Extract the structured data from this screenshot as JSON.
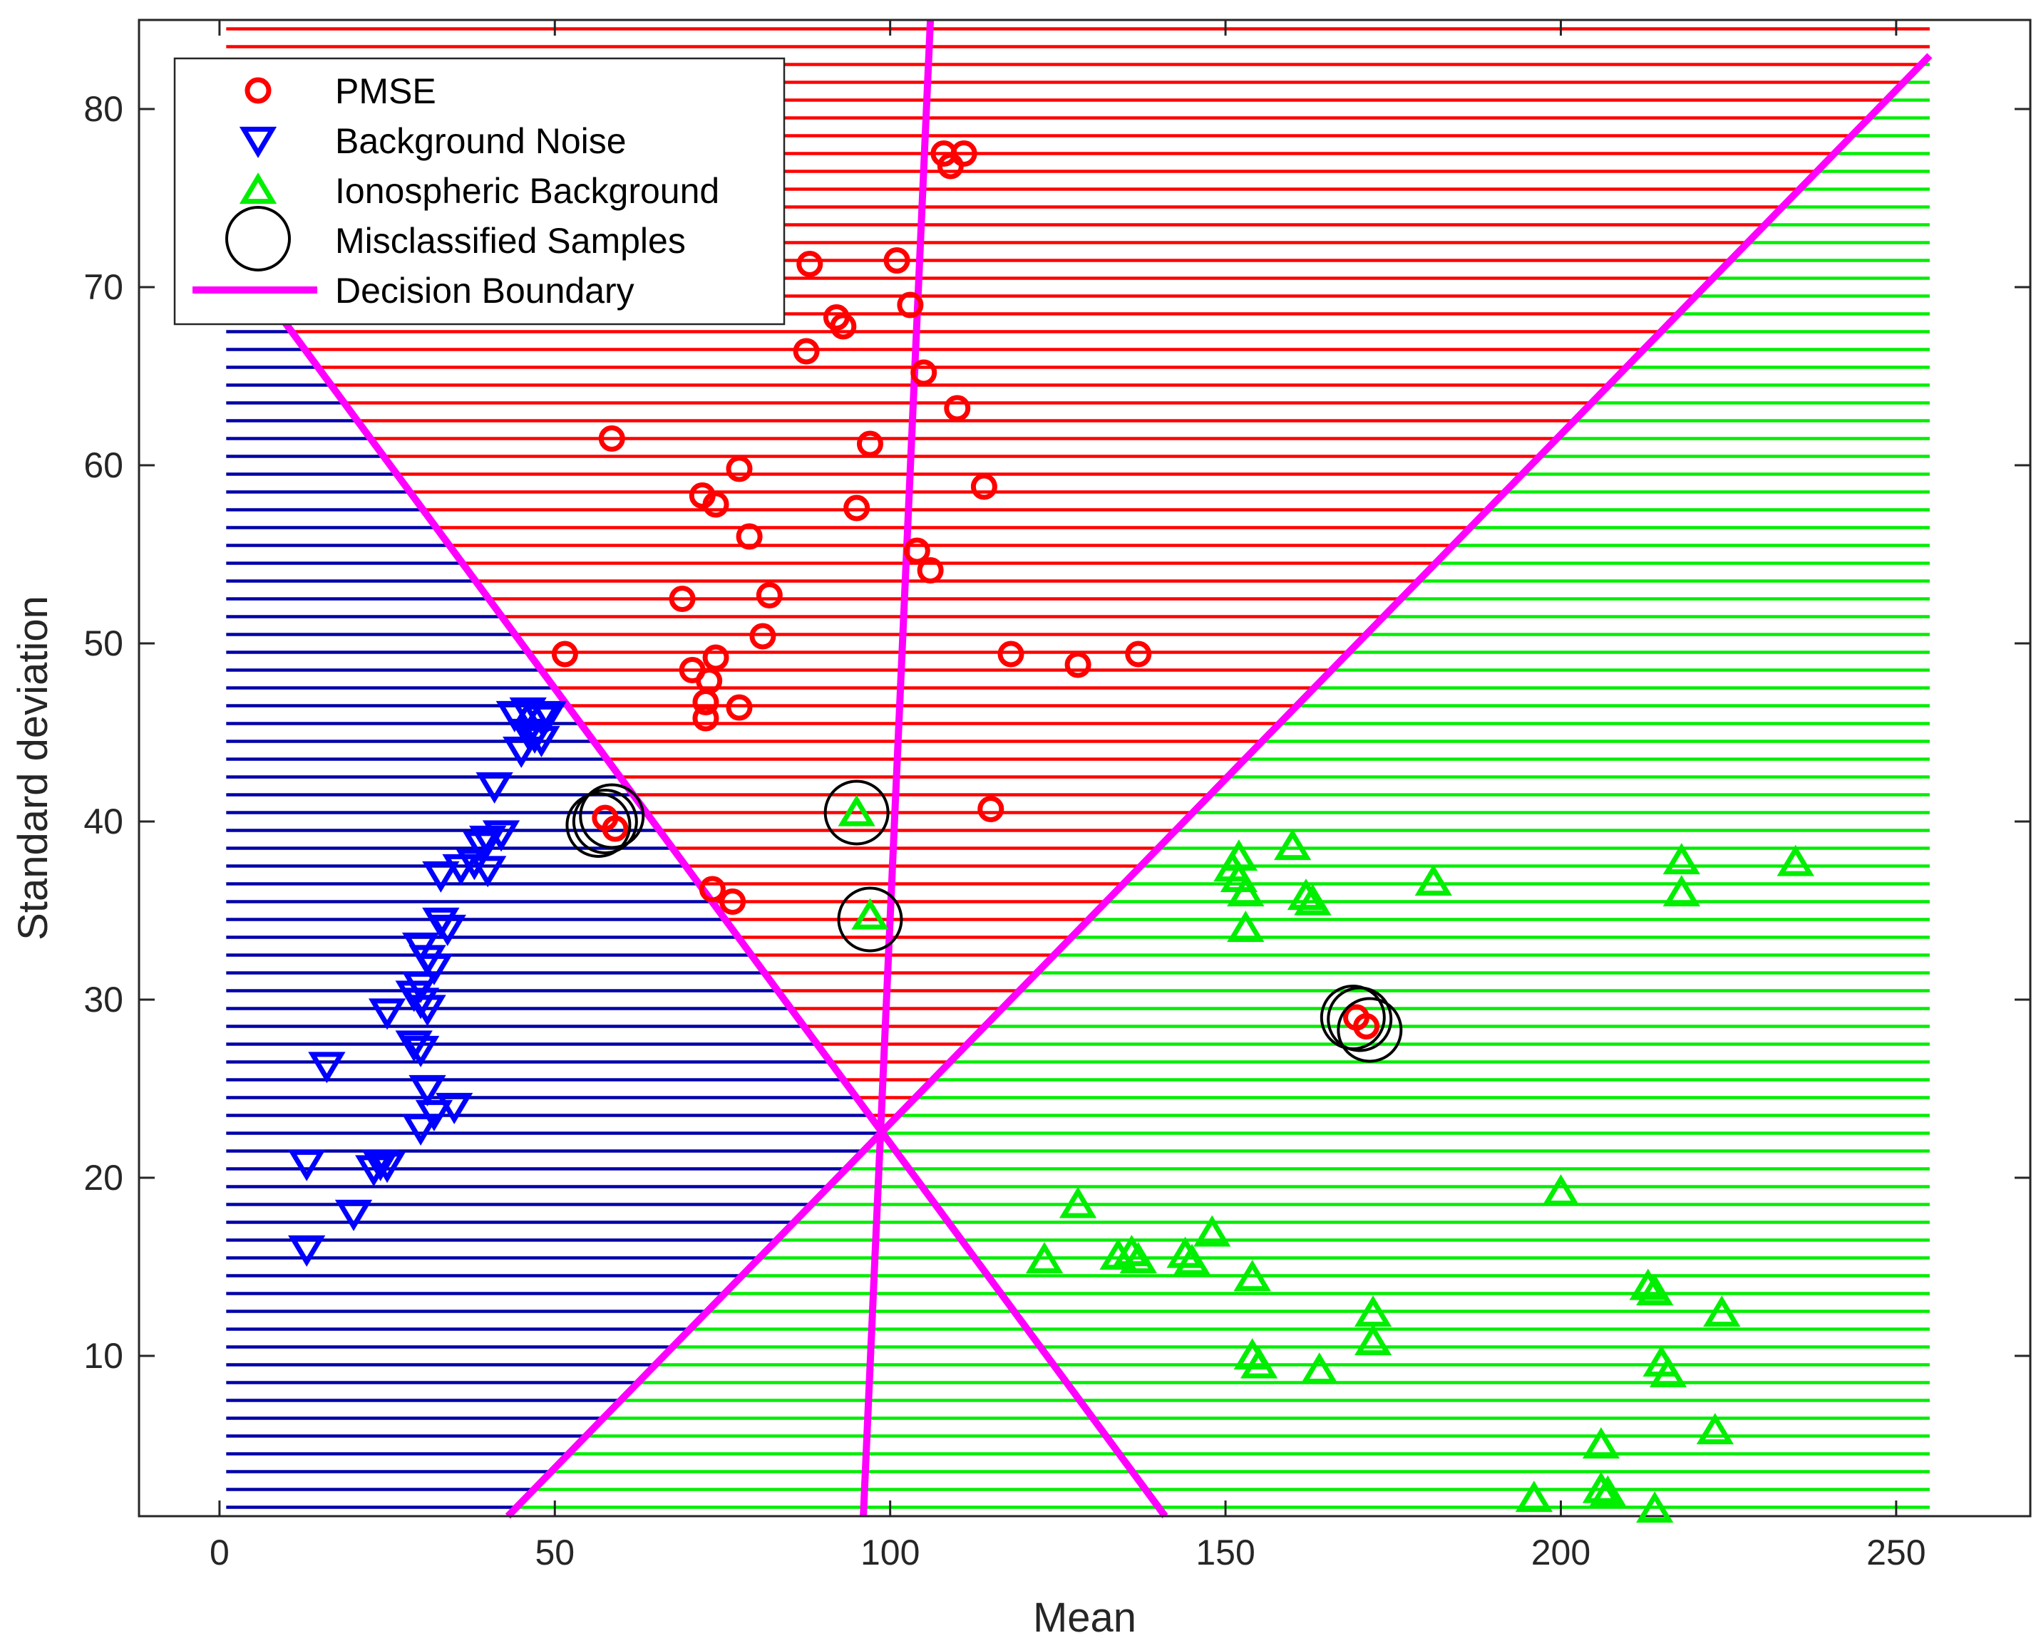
{
  "chart_data": {
    "type": "scatter",
    "title": "",
    "xlabel": "Mean",
    "ylabel": "Standard deviation",
    "xlim": [
      -12,
      270
    ],
    "ylim": [
      1,
      85
    ],
    "xticks": [
      0,
      50,
      100,
      150,
      200,
      250
    ],
    "yticks": [
      10,
      20,
      30,
      40,
      50,
      60,
      70,
      80
    ],
    "region_extent": {
      "x": [
        1,
        255
      ],
      "y": [
        1,
        85
      ],
      "stripe_spacing": 1
    },
    "regions": [
      {
        "name": "PMSE region",
        "color": "#ff0000"
      },
      {
        "name": "Background Noise region",
        "color": "#0000a8"
      },
      {
        "name": "Ionospheric Background region",
        "color": "#00ee00"
      }
    ],
    "boundary_point": [
      99,
      23
    ],
    "boundary_lines": [
      {
        "x": [
          106,
          96
        ],
        "y": [
          85,
          1
        ]
      },
      {
        "x": [
          0,
          141
        ],
        "y": [
          73,
          1
        ]
      },
      {
        "x": [
          43,
          255
        ],
        "y": [
          1,
          83
        ]
      }
    ],
    "legend": {
      "position": "top-left",
      "entries": [
        {
          "label": "PMSE",
          "marker": "circle",
          "color": "#ff0000"
        },
        {
          "label": "Background Noise",
          "marker": "triangle-down",
          "color": "#0000ff"
        },
        {
          "label": "Ionospheric Background",
          "marker": "triangle-up",
          "color": "#00ee00"
        },
        {
          "label": "Misclassified Samples",
          "marker": "big-circle",
          "color": "#000000"
        },
        {
          "label": "Decision Boundary",
          "marker": "line",
          "color": "#ff00ff"
        }
      ]
    },
    "series": [
      {
        "name": "PMSE",
        "marker": "circle",
        "color": "#ff0000",
        "points": [
          [
            108,
            77.5
          ],
          [
            111,
            77.5
          ],
          [
            109,
            76.8
          ],
          [
            88,
            71.3
          ],
          [
            101,
            71.5
          ],
          [
            92,
            68.3
          ],
          [
            93,
            67.8
          ],
          [
            103,
            69
          ],
          [
            87.5,
            66.4
          ],
          [
            105,
            65.2
          ],
          [
            110,
            63.2
          ],
          [
            58.5,
            61.5
          ],
          [
            97,
            61.2
          ],
          [
            77.5,
            59.8
          ],
          [
            114,
            58.8
          ],
          [
            72,
            58.3
          ],
          [
            74,
            57.8
          ],
          [
            95,
            57.6
          ],
          [
            79,
            56
          ],
          [
            104,
            55.2
          ],
          [
            106,
            54.1
          ],
          [
            69,
            52.5
          ],
          [
            82,
            52.7
          ],
          [
            81,
            50.4
          ],
          [
            51.5,
            49.4
          ],
          [
            118,
            49.4
          ],
          [
            137,
            49.4
          ],
          [
            128,
            48.8
          ],
          [
            74,
            49.2
          ],
          [
            70.5,
            48.5
          ],
          [
            73,
            47.9
          ],
          [
            72.5,
            46.7
          ],
          [
            77.5,
            46.4
          ],
          [
            72.5,
            45.8
          ],
          [
            115,
            40.7
          ],
          [
            73.5,
            36.2
          ],
          [
            76.5,
            35.5
          ],
          [
            57.5,
            40.2
          ],
          [
            59,
            39.6
          ],
          [
            169.5,
            29
          ],
          [
            171,
            28.5
          ]
        ]
      },
      {
        "name": "Background Noise",
        "marker": "triangle-down",
        "color": "#0000ff",
        "points": [
          [
            44,
            46
          ],
          [
            46,
            46.2
          ],
          [
            48,
            45.8
          ],
          [
            49,
            46
          ],
          [
            46,
            45
          ],
          [
            47,
            44.8
          ],
          [
            48,
            44.6
          ],
          [
            45,
            44
          ],
          [
            41,
            42
          ],
          [
            42,
            39.3
          ],
          [
            40,
            39
          ],
          [
            39,
            38.7
          ],
          [
            38,
            37.7
          ],
          [
            36,
            37.4
          ],
          [
            40,
            37.3
          ],
          [
            33,
            37
          ],
          [
            33,
            34.4
          ],
          [
            34,
            34
          ],
          [
            30,
            33
          ],
          [
            31,
            32.3
          ],
          [
            32,
            31.8
          ],
          [
            30,
            30.8
          ],
          [
            29,
            30.3
          ],
          [
            30,
            29.9
          ],
          [
            31,
            29.5
          ],
          [
            25,
            29.3
          ],
          [
            29,
            27.5
          ],
          [
            30,
            27.2
          ],
          [
            31,
            25
          ],
          [
            35,
            24
          ],
          [
            32,
            23.6
          ],
          [
            30,
            22.8
          ],
          [
            16,
            26.3
          ],
          [
            24,
            20.8
          ],
          [
            25,
            20.7
          ],
          [
            23,
            20.5
          ],
          [
            13,
            20.8
          ],
          [
            20,
            18
          ],
          [
            13,
            16
          ]
        ]
      },
      {
        "name": "Ionospheric Background",
        "marker": "triangle-up",
        "color": "#00ee00",
        "points": [
          [
            95,
            40.5
          ],
          [
            97,
            34.7
          ],
          [
            152,
            38
          ],
          [
            160,
            38.6
          ],
          [
            151,
            37.4
          ],
          [
            152,
            36.8
          ],
          [
            153,
            36
          ],
          [
            162,
            35.8
          ],
          [
            163,
            35.5
          ],
          [
            153,
            34
          ],
          [
            181,
            36.6
          ],
          [
            218,
            37.8
          ],
          [
            218,
            36
          ],
          [
            235,
            37.7
          ],
          [
            128,
            18.5
          ],
          [
            148,
            16.9
          ],
          [
            123,
            15.4
          ],
          [
            134,
            15.6
          ],
          [
            136,
            15.8
          ],
          [
            137,
            15.4
          ],
          [
            144,
            15.7
          ],
          [
            145,
            15.3
          ],
          [
            154,
            14.4
          ],
          [
            154,
            10
          ],
          [
            155,
            9.5
          ],
          [
            164,
            9.2
          ],
          [
            172,
            12.4
          ],
          [
            172,
            10.8
          ],
          [
            200,
            19.2
          ],
          [
            213,
            13.9
          ],
          [
            214,
            13.6
          ],
          [
            215,
            9.6
          ],
          [
            216,
            9
          ],
          [
            224,
            12.4
          ],
          [
            223,
            5.8
          ],
          [
            206,
            5
          ],
          [
            206,
            2.5
          ],
          [
            207,
            2.3
          ],
          [
            196,
            2
          ],
          [
            214,
            1.4
          ]
        ]
      },
      {
        "name": "Misclassified Samples",
        "marker": "big-circle",
        "color": "#000000",
        "points": [
          [
            56.5,
            39.8
          ],
          [
            58.5,
            40.3
          ],
          [
            57.5,
            40
          ],
          [
            95,
            40.5
          ],
          [
            97,
            34.5
          ],
          [
            169,
            29
          ],
          [
            170,
            28.9
          ],
          [
            171.5,
            28.3
          ]
        ]
      }
    ]
  }
}
